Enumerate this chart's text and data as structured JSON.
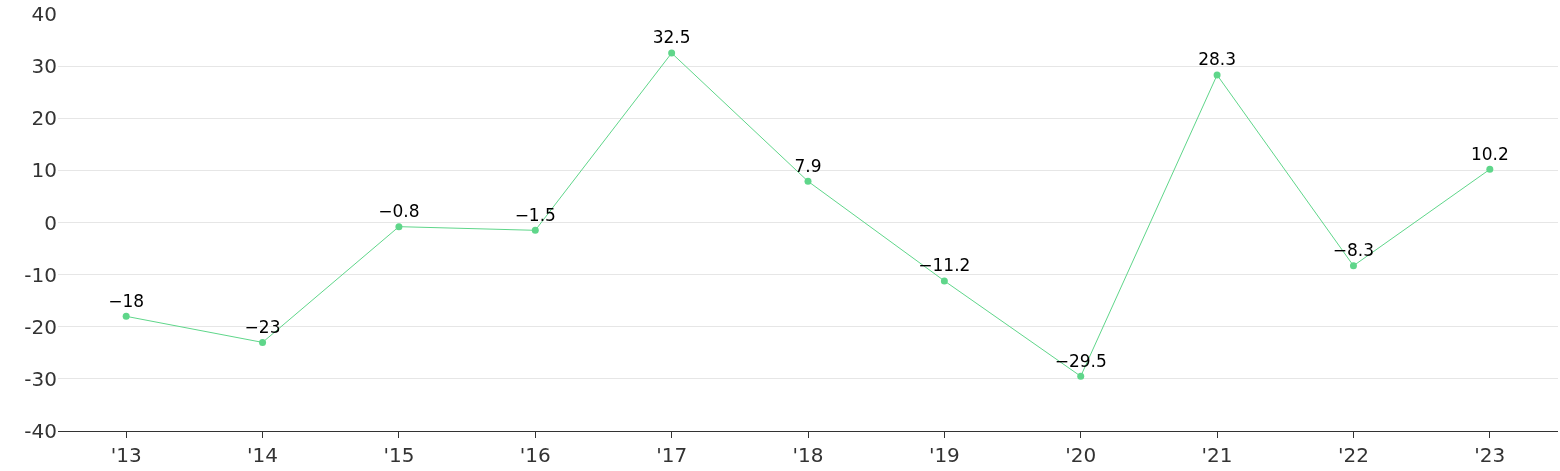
{
  "chart_data": {
    "type": "line",
    "categories": [
      "'13",
      "'14",
      "'15",
      "'16",
      "'17",
      "'18",
      "'19",
      "'20",
      "'21",
      "'22",
      "'23"
    ],
    "series": [
      {
        "color": "#5fd68a",
        "values": [
          -18,
          -23,
          -0.8,
          -1.5,
          32.5,
          7.9,
          -11.2,
          -29.5,
          28.3,
          -8.3,
          10.2
        ]
      }
    ],
    "ylim": [
      -40,
      40
    ],
    "yticks": [
      -40,
      -30,
      -20,
      -10,
      0,
      10,
      20,
      30,
      40
    ],
    "grid": "y",
    "marker": "circle",
    "line_style": "solid",
    "data_labels": true
  }
}
